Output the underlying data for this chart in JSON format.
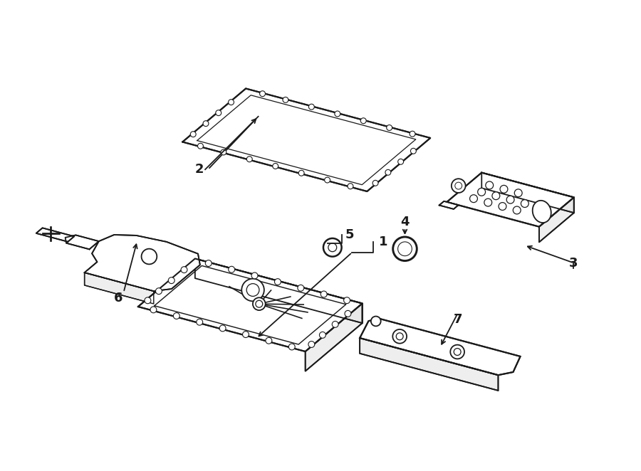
{
  "background_color": "#ffffff",
  "line_color": "#1a1a1a",
  "line_width": 1.3,
  "figsize": [
    9.0,
    6.62
  ],
  "dpi": 100
}
